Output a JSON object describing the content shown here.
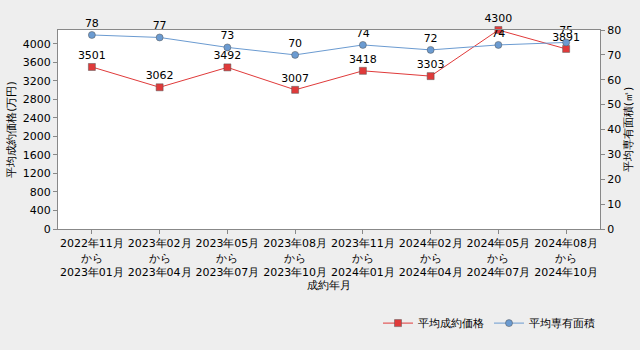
{
  "chart_data": {
    "type": "line",
    "x_label": "成約年月",
    "y_label": "平均成約価格(万円)",
    "y2_label": "平均専有面積(㎡)",
    "categories": [
      "2022年11月\nから\n2023年01月",
      "2023年02月\nから\n2023年04月",
      "2023年05月\nから\n2023年07月",
      "2023年08月\nから\n2023年10月",
      "2023年11月\nから\n2024年01月",
      "2024年02月\nから\n2024年04月",
      "2024年05月\nから\n2024年07月",
      "2024年08月\nから\n2024年10月"
    ],
    "series": [
      {
        "name": "平均成約価格",
        "color": "#e03a3a",
        "marker": "square",
        "values": [
          3501,
          3062,
          3492,
          3007,
          3418,
          3303,
          4300,
          3891
        ]
      },
      {
        "name": "平均専有面積",
        "color": "#6b9bd1",
        "marker": "circle",
        "axis": "y2",
        "values": [
          78,
          77,
          73,
          70,
          74,
          72,
          74,
          75
        ]
      }
    ],
    "ylim": [
      0,
      4300
    ],
    "yticks": [
      0,
      400,
      800,
      1200,
      1600,
      2000,
      2400,
      2800,
      3200,
      3600,
      4000
    ],
    "y2lim": [
      0,
      80
    ],
    "y2ticks": [
      0,
      10,
      20,
      30,
      40,
      50,
      60,
      70,
      80
    ],
    "data_labels": true,
    "grid": false,
    "legend": "bottom-right"
  }
}
